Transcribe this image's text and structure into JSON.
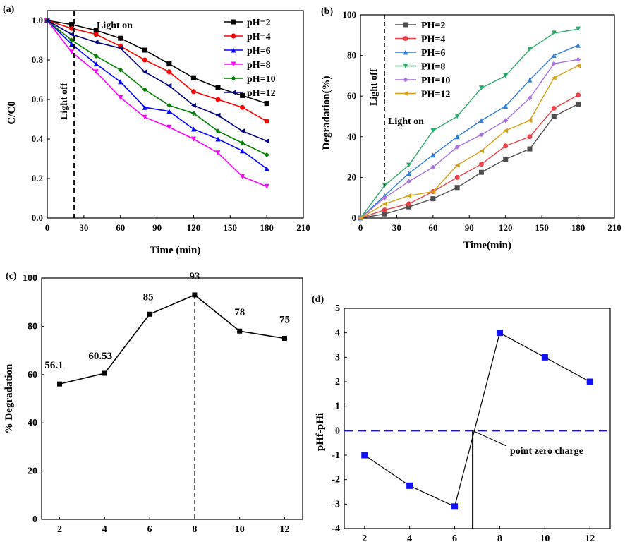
{
  "chart_data": [
    {
      "panel": "(a)",
      "type": "line",
      "xlabel": "Time (min)",
      "ylabel": "C/C0",
      "xlim": [
        0,
        210
      ],
      "ylim": [
        0.0,
        1.05
      ],
      "xticks": [
        0,
        30,
        60,
        90,
        120,
        150,
        180,
        210
      ],
      "yticks": [
        0.0,
        0.2,
        0.4,
        0.6,
        0.8,
        1.0
      ],
      "grid": false,
      "legend_position": "top-right",
      "x": [
        0,
        20,
        40,
        60,
        80,
        100,
        120,
        140,
        160,
        180
      ],
      "annotations": [
        "Light on",
        "Light off"
      ],
      "vline_x": 22,
      "series": [
        {
          "name": "pH=2",
          "color": "#000000",
          "marker": "square",
          "values": [
            1.0,
            0.98,
            0.95,
            0.91,
            0.85,
            0.78,
            0.71,
            0.66,
            0.62,
            0.58
          ]
        },
        {
          "name": "pH=4",
          "color": "#ff0000",
          "marker": "circle",
          "values": [
            1.0,
            0.96,
            0.93,
            0.87,
            0.8,
            0.74,
            0.64,
            0.6,
            0.56,
            0.49
          ]
        },
        {
          "name": "pH=6",
          "color": "#0000ff",
          "marker": "triangle-up",
          "values": [
            1.0,
            0.88,
            0.78,
            0.69,
            0.56,
            0.54,
            0.45,
            0.4,
            0.34,
            0.25
          ]
        },
        {
          "name": "pH=8",
          "color": "#ff00ff",
          "marker": "triangle-down",
          "values": [
            1.0,
            0.84,
            0.74,
            0.61,
            0.51,
            0.46,
            0.4,
            0.33,
            0.21,
            0.16
          ]
        },
        {
          "name": "pH=10",
          "color": "#008000",
          "marker": "diamond",
          "values": [
            1.0,
            0.9,
            0.82,
            0.75,
            0.65,
            0.57,
            0.53,
            0.44,
            0.38,
            0.32
          ]
        },
        {
          "name": "pH=12",
          "color": "#000080",
          "marker": "triangle-left",
          "values": [
            1.0,
            0.93,
            0.89,
            0.86,
            0.74,
            0.67,
            0.57,
            0.52,
            0.44,
            0.39
          ]
        }
      ]
    },
    {
      "panel": "(b)",
      "type": "line",
      "xlabel": "Time(min)",
      "ylabel": "Degradation(%)",
      "xlim": [
        0,
        210
      ],
      "ylim": [
        0,
        100
      ],
      "xticks": [
        0,
        30,
        60,
        90,
        120,
        150,
        180,
        210
      ],
      "yticks": [
        0,
        20,
        40,
        60,
        80,
        100
      ],
      "grid": false,
      "legend_position": "top-left",
      "x": [
        0,
        20,
        40,
        60,
        80,
        100,
        120,
        140,
        160,
        180
      ],
      "annotations": [
        "Light off",
        "Light on"
      ],
      "vline_x": 20,
      "series": [
        {
          "name": "PH=2",
          "color": "#4d4d4d",
          "marker": "square",
          "values": [
            0,
            2.0,
            5.5,
            9.5,
            15,
            22.5,
            29,
            34,
            50,
            56.1
          ]
        },
        {
          "name": "PH=4",
          "color": "#e8434a",
          "marker": "circle",
          "values": [
            0,
            4.0,
            7.0,
            13,
            20,
            26.5,
            35.5,
            40,
            54,
            60.5
          ]
        },
        {
          "name": "PH=6",
          "color": "#2f7fd6",
          "marker": "triangle-up",
          "values": [
            0,
            11,
            22,
            31,
            40,
            48,
            55,
            68,
            80,
            85
          ]
        },
        {
          "name": "PH=8",
          "color": "#2bab6a",
          "marker": "triangle-down",
          "values": [
            0,
            16,
            26,
            43,
            50,
            64,
            70,
            83,
            91,
            93
          ]
        },
        {
          "name": "PH=10",
          "color": "#a970e0",
          "marker": "diamond",
          "values": [
            0,
            10,
            18,
            25,
            35,
            41,
            48,
            59,
            76,
            78
          ]
        },
        {
          "name": "PH=12",
          "color": "#d4a017",
          "marker": "triangle-left",
          "values": [
            0,
            7,
            11,
            13,
            26,
            33,
            43,
            48,
            69,
            75
          ]
        }
      ]
    },
    {
      "panel": "(c)",
      "type": "line",
      "xlabel": "",
      "ylabel": "% Degradation",
      "xlim": [
        1.2,
        12.8
      ],
      "ylim": [
        0,
        100
      ],
      "xticks": [
        2,
        4,
        6,
        8,
        10,
        12
      ],
      "yticks": [
        0,
        20,
        40,
        60,
        80,
        100
      ],
      "grid": false,
      "x": [
        2,
        4,
        6,
        8,
        10,
        12
      ],
      "vline_x": 8,
      "series": [
        {
          "color": "#000000",
          "marker": "square",
          "values": [
            56.1,
            60.53,
            85,
            93,
            78,
            75
          ],
          "labels": [
            "56.1",
            "60.53",
            "85",
            "93",
            "78",
            "75"
          ]
        }
      ]
    },
    {
      "panel": "(d)",
      "type": "line",
      "xlabel": "",
      "ylabel": "pHf-pHi",
      "xlim": [
        1.1,
        12.9
      ],
      "ylim": [
        -4,
        5
      ],
      "xticks": [
        2,
        4,
        6,
        8,
        10,
        12
      ],
      "yticks": [
        -4,
        -3,
        -2,
        -1,
        0,
        1,
        2,
        3,
        4,
        5
      ],
      "grid": false,
      "x": [
        2,
        4,
        6,
        8,
        10,
        12
      ],
      "hline_y": 0,
      "zero_point_x": 6.8,
      "annotations": [
        "point zero charge"
      ],
      "series": [
        {
          "color": "#000000",
          "marker_color": "#1010f0",
          "marker": "square",
          "values": [
            -1,
            -2.25,
            -3.1,
            4,
            3,
            2
          ]
        }
      ]
    }
  ]
}
